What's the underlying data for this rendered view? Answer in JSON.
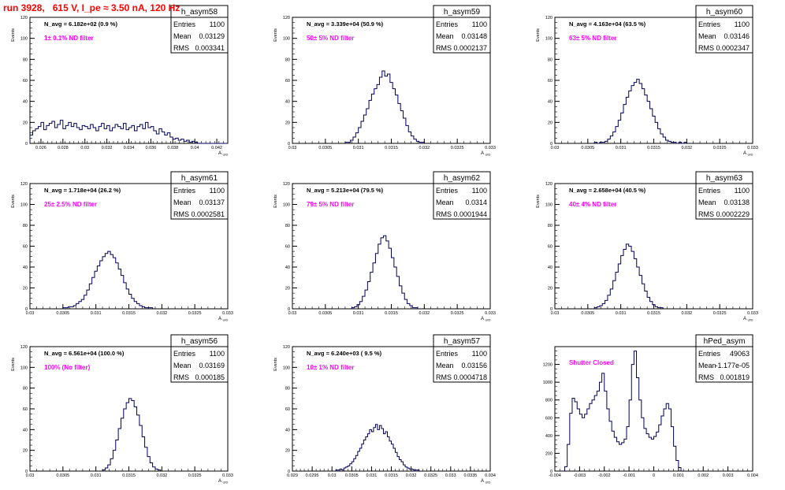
{
  "header": {
    "run": "run 3928,",
    "voltage": "615 V,",
    "current": "I_pe ≈ 3.50 nA,",
    "rate": "120 Hz"
  },
  "colors": {
    "histogram": "#00005a",
    "filter_label": "#ff00ff",
    "title": "#ff0000",
    "axis": "#000000"
  },
  "chart_data": [
    {
      "type": "histogram",
      "name": "h_asym58",
      "navg": "N_avg = 6.182e+02 (0.9 %)",
      "filter": "1± 0.1% ND filter",
      "stats": {
        "Entries": "1100",
        "Mean": "0.03129",
        "RMS": "0.003341"
      },
      "ylabel": "Events",
      "xlabel": "A_UID",
      "xlim": [
        0.025,
        0.043
      ],
      "ylim": [
        0,
        120
      ],
      "xticks": [
        0.026,
        0.028,
        0.03,
        0.032,
        0.034,
        0.036,
        0.038,
        0.04,
        0.042
      ],
      "xtick_labels": [
        "0.026",
        "0.028",
        "0.03",
        "0.032",
        "0.034",
        "0.036",
        "0.038",
        "0.04",
        "0.042"
      ],
      "yticks": [
        0,
        20,
        40,
        60,
        80,
        100,
        120
      ],
      "ytick_labels": [
        "0",
        "20",
        "40",
        "60",
        "80",
        "100",
        "120"
      ],
      "x0": 0.025,
      "bin_width": 0.00025,
      "values": [
        8,
        12,
        14,
        16,
        20,
        13,
        17,
        19,
        21,
        15,
        18,
        22,
        14,
        17,
        20,
        16,
        19,
        15,
        13,
        17,
        16,
        14,
        18,
        15,
        12,
        16,
        19,
        14,
        17,
        12,
        15,
        18,
        16,
        14,
        19,
        13,
        15,
        17,
        12,
        16,
        18,
        14,
        20,
        15,
        16,
        12,
        9,
        14,
        11,
        8,
        10,
        6,
        4,
        5,
        3,
        4,
        2,
        3,
        1,
        2,
        1,
        0,
        0,
        0,
        0,
        0,
        0,
        0,
        0,
        0,
        0,
        0
      ]
    },
    {
      "type": "histogram",
      "name": "h_asym59",
      "navg": "N_avg = 3.339e+04 (50.9 %)",
      "filter": "50± 5% ND filter",
      "stats": {
        "Entries": "1100",
        "Mean": "0.03148",
        "RMS": "0.0002137"
      },
      "ylabel": "Events",
      "xlabel": "A_UID",
      "xlim": [
        0.03,
        0.033
      ],
      "ylim": [
        0,
        120
      ],
      "xticks": [
        0.03,
        0.0305,
        0.031,
        0.0315,
        0.032,
        0.0325,
        0.033
      ],
      "xtick_labels": [
        "0.03",
        "0.0305",
        "0.031",
        "0.0315",
        "0.032",
        "0.0325",
        "0.033"
      ],
      "yticks": [
        0,
        20,
        40,
        60,
        80,
        100,
        120
      ],
      "ytick_labels": [
        "0",
        "20",
        "40",
        "60",
        "80",
        "100",
        "120"
      ],
      "x0": 0.0308,
      "bin_width": 4e-05,
      "values": [
        1,
        1,
        3,
        6,
        10,
        15,
        21,
        27,
        33,
        41,
        47,
        52,
        56,
        63,
        69,
        64,
        66,
        58,
        52,
        46,
        38,
        31,
        24,
        17,
        11,
        7,
        4,
        2,
        1,
        1
      ]
    },
    {
      "type": "histogram",
      "name": "h_asym60",
      "navg": "N_avg = 4.163e+04 (63.5 %)",
      "filter": "63± 5% ND filter",
      "stats": {
        "Entries": "1100",
        "Mean": "0.03146",
        "RMS": "0.0002347"
      },
      "ylabel": "Events",
      "xlabel": "A_UID",
      "xlim": [
        0.03,
        0.033
      ],
      "ylim": [
        0,
        120
      ],
      "xticks": [
        0.03,
        0.0305,
        0.031,
        0.0315,
        0.032,
        0.0325,
        0.033
      ],
      "xtick_labels": [
        "0.03",
        "0.0305",
        "0.031",
        "0.0315",
        "0.032",
        "0.0325",
        "0.033"
      ],
      "yticks": [
        0,
        20,
        40,
        60,
        80,
        100,
        120
      ],
      "ytick_labels": [
        "0",
        "20",
        "40",
        "60",
        "80",
        "100",
        "120"
      ],
      "x0": 0.0306,
      "bin_width": 4e-05,
      "values": [
        1,
        0,
        1,
        1,
        2,
        4,
        7,
        11,
        16,
        22,
        29,
        37,
        44,
        50,
        55,
        58,
        61,
        57,
        52,
        46,
        40,
        33,
        26,
        20,
        14,
        9,
        6,
        3,
        2,
        1,
        1,
        0,
        1,
        0,
        1
      ]
    },
    {
      "type": "histogram",
      "name": "h_asym61",
      "navg": "N_avg = 1.718e+04 (26.2 %)",
      "filter": "25± 2.5% ND filter",
      "stats": {
        "Entries": "1100",
        "Mean": "0.03137",
        "RMS": "0.0002581"
      },
      "ylabel": "Events",
      "xlabel": "A_UID",
      "xlim": [
        0.03,
        0.033
      ],
      "ylim": [
        0,
        120
      ],
      "xticks": [
        0.03,
        0.0305,
        0.031,
        0.0315,
        0.032,
        0.0325,
        0.033
      ],
      "xtick_labels": [
        "0.03",
        "0.0305",
        "0.031",
        "0.0315",
        "0.032",
        "0.0325",
        "0.033"
      ],
      "yticks": [
        0,
        20,
        40,
        60,
        80,
        100,
        120
      ],
      "ytick_labels": [
        "0",
        "20",
        "40",
        "60",
        "80",
        "100",
        "120"
      ],
      "x0": 0.0305,
      "bin_width": 4e-05,
      "values": [
        1,
        1,
        2,
        2,
        3,
        5,
        7,
        9,
        13,
        18,
        24,
        30,
        36,
        41,
        46,
        50,
        53,
        55,
        52,
        49,
        44,
        38,
        32,
        25,
        19,
        14,
        10,
        7,
        5,
        3,
        2,
        1,
        1,
        1
      ]
    },
    {
      "type": "histogram",
      "name": "h_asym62",
      "navg": "N_avg = 5.213e+04 (79.5 %)",
      "filter": "79± 5% ND filter",
      "stats": {
        "Entries": "1100",
        "Mean": "0.0314",
        "RMS": "0.0001944"
      },
      "ylabel": "Events",
      "xlabel": "A_UID",
      "xlim": [
        0.03,
        0.033
      ],
      "ylim": [
        0,
        120
      ],
      "xticks": [
        0.03,
        0.0305,
        0.031,
        0.0315,
        0.032,
        0.0325,
        0.033
      ],
      "xtick_labels": [
        "0.03",
        "0.0305",
        "0.031",
        "0.0315",
        "0.032",
        "0.0325",
        "0.033"
      ],
      "yticks": [
        0,
        20,
        40,
        60,
        80,
        100,
        120
      ],
      "ytick_labels": [
        "0",
        "20",
        "40",
        "60",
        "80",
        "100",
        "120"
      ],
      "x0": 0.0309,
      "bin_width": 4e-05,
      "values": [
        1,
        2,
        4,
        7,
        12,
        18,
        26,
        35,
        44,
        53,
        62,
        68,
        70,
        65,
        58,
        49,
        40,
        31,
        22,
        15,
        9,
        5,
        3,
        1,
        1
      ]
    },
    {
      "type": "histogram",
      "name": "h_asym63",
      "navg": "N_avg = 2.658e+04 (40.5 %)",
      "filter": "40± 4% ND filter",
      "stats": {
        "Entries": "1100",
        "Mean": "0.03138",
        "RMS": "0.0002229"
      },
      "ylabel": "Events",
      "xlabel": "A_UID",
      "xlim": [
        0.03,
        0.033
      ],
      "ylim": [
        0,
        120
      ],
      "xticks": [
        0.03,
        0.0305,
        0.031,
        0.0315,
        0.032,
        0.0325,
        0.033
      ],
      "xtick_labels": [
        "0.03",
        "0.0305",
        "0.031",
        "0.0315",
        "0.032",
        "0.0325",
        "0.033"
      ],
      "yticks": [
        0,
        20,
        40,
        60,
        80,
        100,
        120
      ],
      "ytick_labels": [
        "0",
        "20",
        "40",
        "60",
        "80",
        "100",
        "120"
      ],
      "x0": 0.0306,
      "bin_width": 4e-05,
      "values": [
        1,
        2,
        3,
        5,
        8,
        13,
        19,
        27,
        35,
        43,
        51,
        57,
        62,
        60,
        55,
        48,
        40,
        32,
        24,
        17,
        11,
        7,
        4,
        2,
        1,
        1
      ]
    },
    {
      "type": "histogram",
      "name": "h_asym56",
      "navg": "N_avg = 6.561e+04 (100.0 %)",
      "filter": "100% (No filter)",
      "stats": {
        "Entries": "1100",
        "Mean": "0.03169",
        "RMS": "0.000185"
      },
      "ylabel": "Events",
      "xlabel": "A_UID",
      "xlim": [
        0.03,
        0.033
      ],
      "ylim": [
        0,
        120
      ],
      "xticks": [
        0.03,
        0.0305,
        0.031,
        0.0315,
        0.032,
        0.0325,
        0.033
      ],
      "xtick_labels": [
        "0.03",
        "0.0305",
        "0.031",
        "0.0315",
        "0.032",
        "0.0325",
        "0.033"
      ],
      "yticks": [
        0,
        20,
        40,
        60,
        80,
        100,
        120
      ],
      "ytick_labels": [
        "0",
        "20",
        "40",
        "60",
        "80",
        "100",
        "120"
      ],
      "x0": 0.0311,
      "bin_width": 4e-05,
      "values": [
        1,
        3,
        6,
        12,
        20,
        30,
        41,
        51,
        60,
        66,
        70,
        68,
        62,
        54,
        44,
        33,
        23,
        14,
        8,
        4,
        2,
        1
      ]
    },
    {
      "type": "histogram",
      "name": "h_asym57",
      "navg": "N_avg = 6.240e+03 ( 9.5 %)",
      "filter": "10± 1% ND filter",
      "stats": {
        "Entries": "1100",
        "Mean": "0.03156",
        "RMS": "0.0004718"
      },
      "ylabel": "Events",
      "xlabel": "A_UID",
      "xlim": [
        0.029,
        0.034
      ],
      "ylim": [
        0,
        120
      ],
      "xticks": [
        0.029,
        0.0295,
        0.03,
        0.0305,
        0.031,
        0.0315,
        0.032,
        0.0325,
        0.033,
        0.0335,
        0.034
      ],
      "xtick_labels": [
        "0.029",
        "0.0295",
        "0.03",
        "0.0305",
        "0.031",
        "0.0315",
        "0.032",
        "0.0325",
        "0.033",
        "0.0335",
        "0.034"
      ],
      "yticks": [
        0,
        20,
        40,
        60,
        80,
        100,
        120
      ],
      "ytick_labels": [
        "0",
        "20",
        "40",
        "60",
        "80",
        "100",
        "120"
      ],
      "x0": 0.0301,
      "bin_width": 5e-05,
      "values": [
        1,
        1,
        2,
        1,
        3,
        4,
        5,
        7,
        9,
        12,
        15,
        19,
        22,
        26,
        30,
        33,
        36,
        40,
        38,
        42,
        45,
        40,
        44,
        41,
        36,
        38,
        33,
        29,
        26,
        22,
        18,
        14,
        11,
        9,
        6,
        4,
        3,
        2,
        2,
        1,
        1,
        1
      ]
    },
    {
      "type": "histogram",
      "name": "hPed_asym",
      "navg": "",
      "filter": "Shutter Closed",
      "stats": {
        "Entries": "49063",
        "Mean": "-1.177e-05",
        "RMS": "0.001819"
      },
      "ylabel": "",
      "xlabel": "",
      "xlim": [
        -0.004,
        0.004
      ],
      "ylim": [
        0,
        1400
      ],
      "xticks": [
        -0.004,
        -0.003,
        -0.002,
        -0.001,
        0,
        0.001,
        0.002,
        0.003,
        0.004
      ],
      "xtick_labels": [
        "-0.004",
        "-0.003",
        "-0.002",
        "-0.001",
        "0",
        "0.001",
        "0.002",
        "0.003",
        "0.004"
      ],
      "yticks": [
        0,
        200,
        400,
        600,
        800,
        1000,
        1200
      ],
      "ytick_labels": [
        "0",
        "200",
        "400",
        "600",
        "800",
        "1000",
        "1200"
      ],
      "x0": -0.0036,
      "bin_width": 0.0001,
      "values": [
        50,
        300,
        650,
        820,
        780,
        700,
        640,
        600,
        640,
        700,
        760,
        800,
        850,
        900,
        1000,
        1100,
        900,
        700,
        560,
        450,
        380,
        330,
        300,
        320,
        360,
        500,
        800,
        1200,
        1350,
        1050,
        800,
        600,
        480,
        420,
        380,
        360,
        390,
        440,
        520,
        620,
        700,
        760,
        700,
        500,
        280,
        120,
        40
      ]
    }
  ]
}
